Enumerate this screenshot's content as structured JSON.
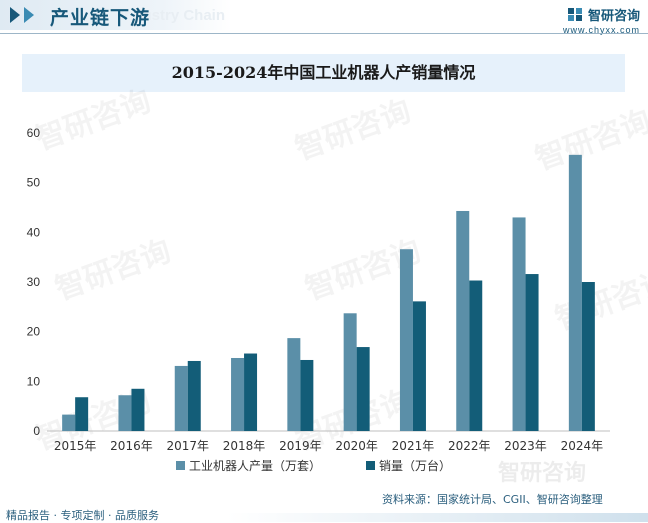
{
  "header": {
    "title": "产业链下游",
    "english_watermark": "Industry Chain",
    "brand_name": "智研咨询",
    "brand_url": "www.chyxx.com"
  },
  "watermark_text": "智研咨询",
  "footer": {
    "left": "精品报告 · 专项定制 · 品质服务",
    "source": "资料来源：国家统计局、CGII、智研咨询整理"
  },
  "colors": {
    "production": "#5b8fa8",
    "sales": "#135d78",
    "brand": "#17587a",
    "title_bg": "#e6f1fb"
  },
  "chart_data": {
    "type": "bar",
    "title": "2015-2024年中国工业机器人产销量情况",
    "categories": [
      "2015年",
      "2016年",
      "2017年",
      "2018年",
      "2019年",
      "2020年",
      "2021年",
      "2022年",
      "2023年",
      "2024年"
    ],
    "series": [
      {
        "name": "工业机器人产量（万套）",
        "values": [
          3.3,
          7.2,
          13.1,
          14.7,
          18.7,
          23.7,
          36.6,
          44.3,
          43.0,
          55.6
        ]
      },
      {
        "name": "销量（万台）",
        "values": [
          6.8,
          8.5,
          14.1,
          15.6,
          14.3,
          16.9,
          26.1,
          30.3,
          31.6,
          30.0
        ]
      }
    ],
    "ylim": [
      0,
      60
    ],
    "yticks": [
      0,
      10,
      20,
      30,
      40,
      50,
      60
    ],
    "xlabel": "",
    "ylabel": "",
    "grid": false,
    "legend_position": "bottom"
  }
}
